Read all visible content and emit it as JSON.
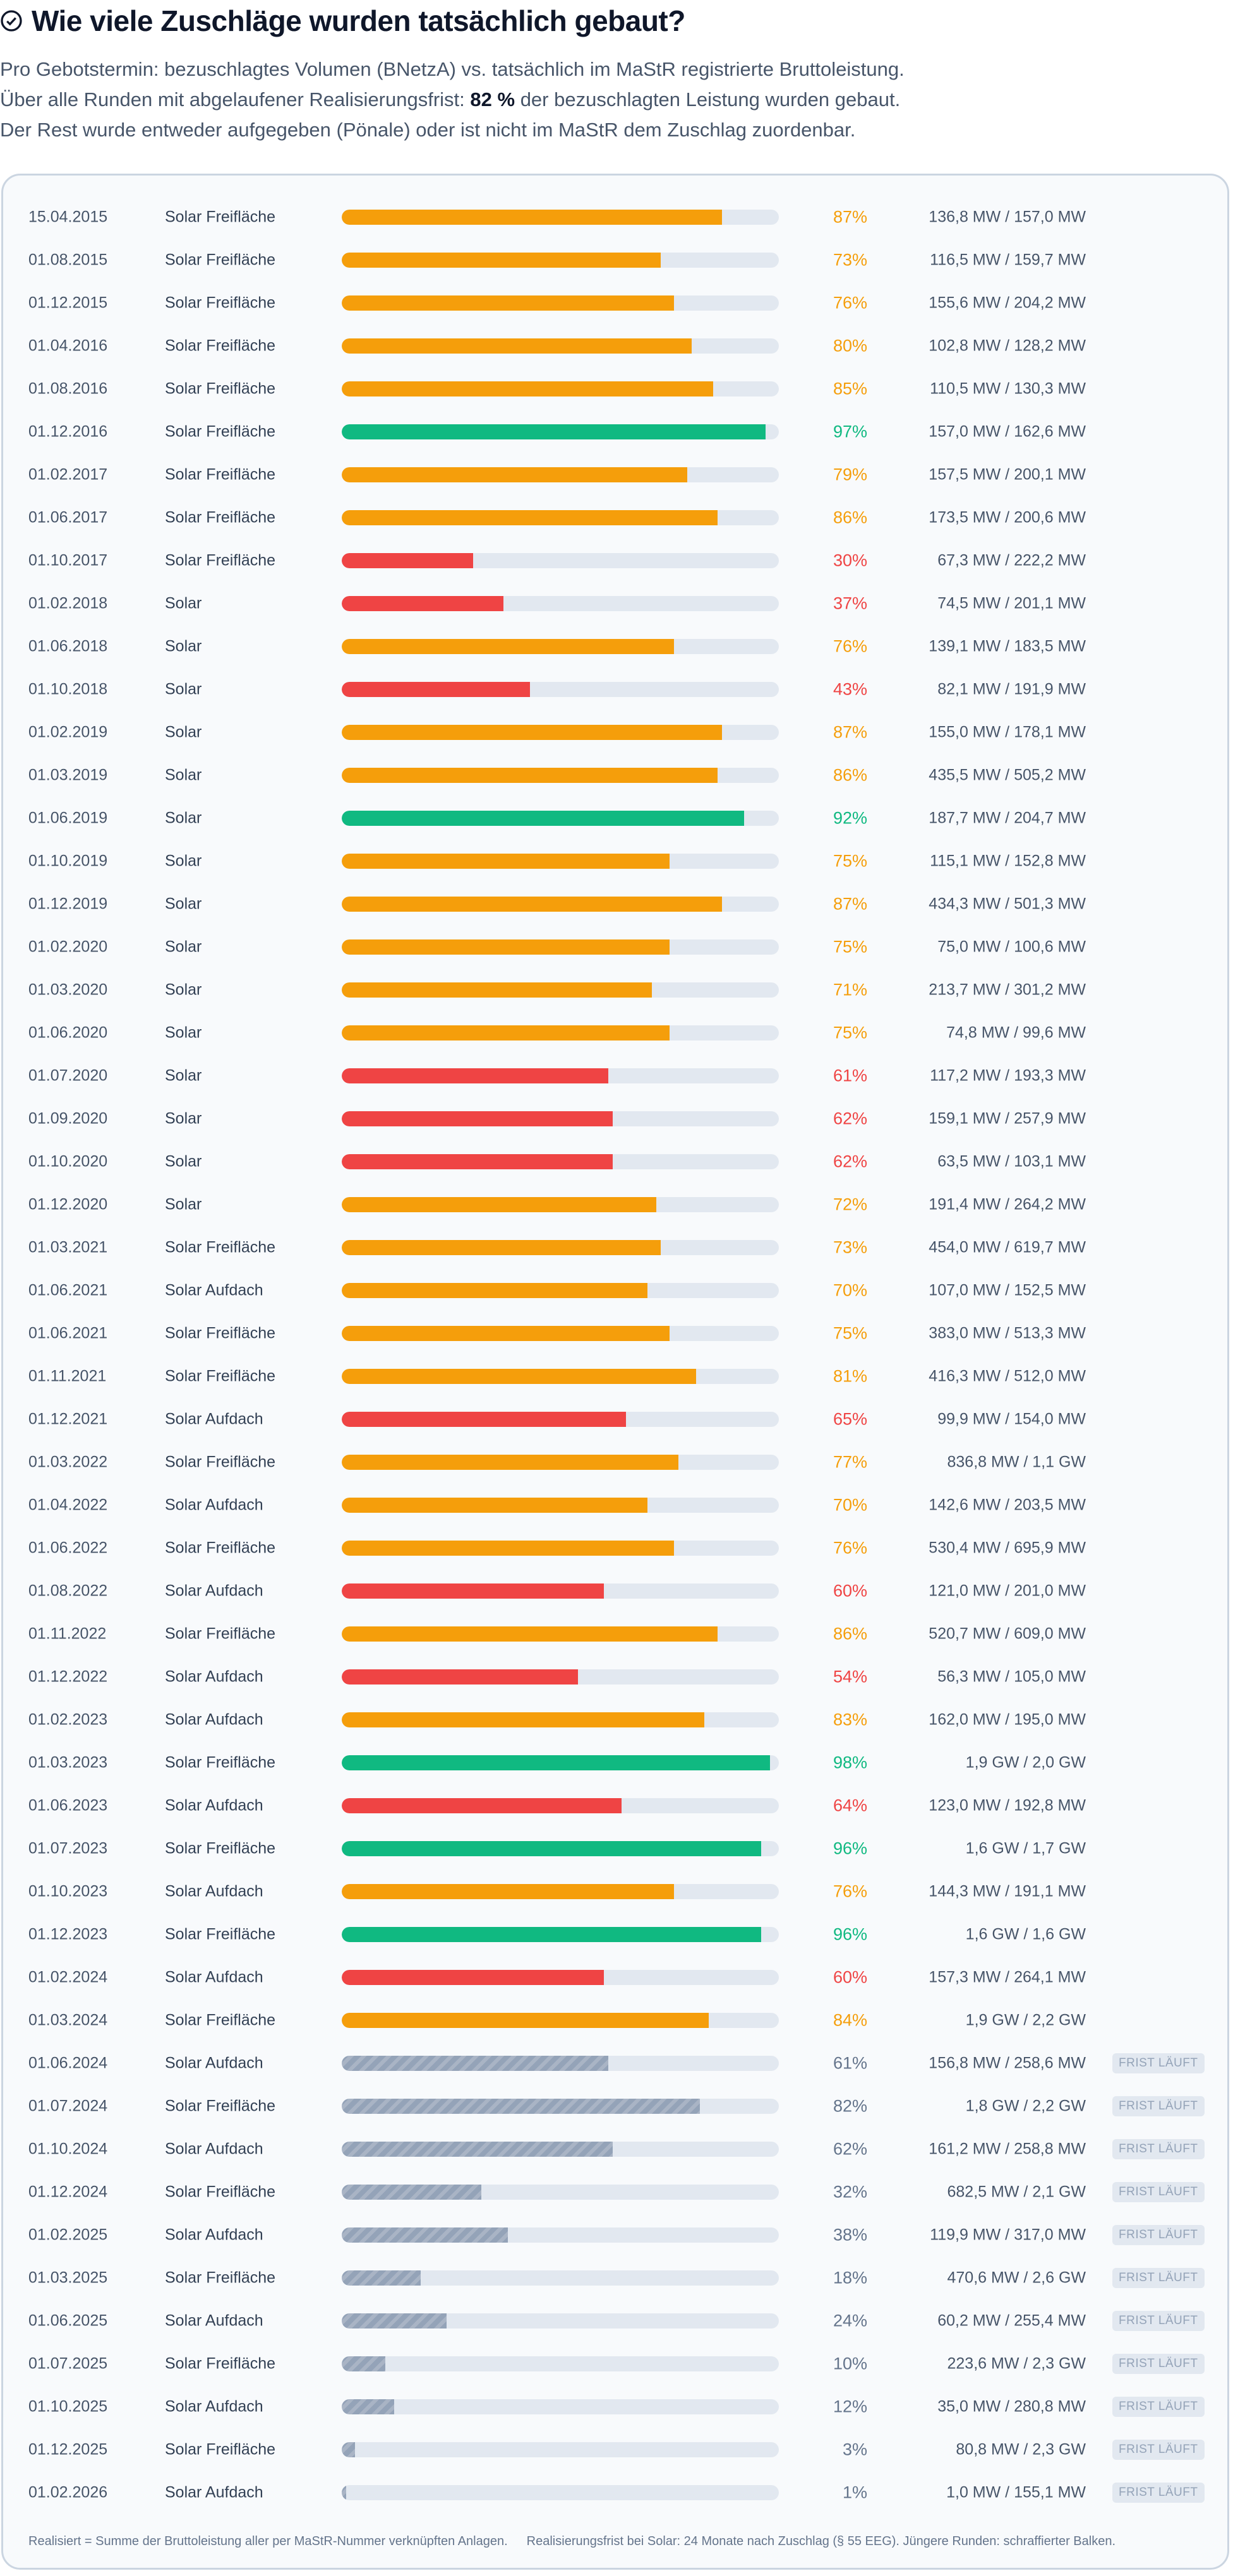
{
  "header": {
    "title": "Wie viele Zuschläge wurden tatsächlich gebaut?",
    "line1": "Pro Gebotstermin: bezuschlagtes Volumen (BNetzA) vs. tatsächlich im MaStR registrierte Bruttoleistung.",
    "line2_pre": "Über alle Runden mit abgelaufener Realisierungsfrist: ",
    "line2_bold": "82 %",
    "line2_post": " der bezuschlagten Leistung wurden gebaut.",
    "line3": "Der Rest wurde entweder aufgegeben (Pönale) oder ist nicht im MaStR dem Zuschlag zuordenbar."
  },
  "colors": {
    "orange": "#f59e0b",
    "green": "#10b981",
    "red": "#ef4444",
    "pending": "#94a3b8",
    "track": "#e2e8f0"
  },
  "chart_data": {
    "type": "bar",
    "orientation": "horizontal",
    "xlim": [
      0,
      100
    ],
    "unit": "%",
    "badge_label": "FRIST LÄUFT",
    "rows": [
      {
        "date": "15.04.2015",
        "type": "Solar Freifläche",
        "pct": 87,
        "value": "136,8 MW / 157,0 MW",
        "status": "orange"
      },
      {
        "date": "01.08.2015",
        "type": "Solar Freifläche",
        "pct": 73,
        "value": "116,5 MW / 159,7 MW",
        "status": "orange"
      },
      {
        "date": "01.12.2015",
        "type": "Solar Freifläche",
        "pct": 76,
        "value": "155,6 MW / 204,2 MW",
        "status": "orange"
      },
      {
        "date": "01.04.2016",
        "type": "Solar Freifläche",
        "pct": 80,
        "value": "102,8 MW / 128,2 MW",
        "status": "orange"
      },
      {
        "date": "01.08.2016",
        "type": "Solar Freifläche",
        "pct": 85,
        "value": "110,5 MW / 130,3 MW",
        "status": "orange"
      },
      {
        "date": "01.12.2016",
        "type": "Solar Freifläche",
        "pct": 97,
        "value": "157,0 MW / 162,6 MW",
        "status": "green"
      },
      {
        "date": "01.02.2017",
        "type": "Solar Freifläche",
        "pct": 79,
        "value": "157,5 MW / 200,1 MW",
        "status": "orange"
      },
      {
        "date": "01.06.2017",
        "type": "Solar Freifläche",
        "pct": 86,
        "value": "173,5 MW / 200,6 MW",
        "status": "orange"
      },
      {
        "date": "01.10.2017",
        "type": "Solar Freifläche",
        "pct": 30,
        "value": "67,3 MW / 222,2 MW",
        "status": "red"
      },
      {
        "date": "01.02.2018",
        "type": "Solar",
        "pct": 37,
        "value": "74,5 MW / 201,1 MW",
        "status": "red"
      },
      {
        "date": "01.06.2018",
        "type": "Solar",
        "pct": 76,
        "value": "139,1 MW / 183,5 MW",
        "status": "orange"
      },
      {
        "date": "01.10.2018",
        "type": "Solar",
        "pct": 43,
        "value": "82,1 MW / 191,9 MW",
        "status": "red"
      },
      {
        "date": "01.02.2019",
        "type": "Solar",
        "pct": 87,
        "value": "155,0 MW / 178,1 MW",
        "status": "orange"
      },
      {
        "date": "01.03.2019",
        "type": "Solar",
        "pct": 86,
        "value": "435,5 MW / 505,2 MW",
        "status": "orange"
      },
      {
        "date": "01.06.2019",
        "type": "Solar",
        "pct": 92,
        "value": "187,7 MW / 204,7 MW",
        "status": "green"
      },
      {
        "date": "01.10.2019",
        "type": "Solar",
        "pct": 75,
        "value": "115,1 MW / 152,8 MW",
        "status": "orange"
      },
      {
        "date": "01.12.2019",
        "type": "Solar",
        "pct": 87,
        "value": "434,3 MW / 501,3 MW",
        "status": "orange"
      },
      {
        "date": "01.02.2020",
        "type": "Solar",
        "pct": 75,
        "value": "75,0 MW / 100,6 MW",
        "status": "orange"
      },
      {
        "date": "01.03.2020",
        "type": "Solar",
        "pct": 71,
        "value": "213,7 MW / 301,2 MW",
        "status": "orange"
      },
      {
        "date": "01.06.2020",
        "type": "Solar",
        "pct": 75,
        "value": "74,8 MW / 99,6 MW",
        "status": "orange"
      },
      {
        "date": "01.07.2020",
        "type": "Solar",
        "pct": 61,
        "value": "117,2 MW / 193,3 MW",
        "status": "red"
      },
      {
        "date": "01.09.2020",
        "type": "Solar",
        "pct": 62,
        "value": "159,1 MW / 257,9 MW",
        "status": "red"
      },
      {
        "date": "01.10.2020",
        "type": "Solar",
        "pct": 62,
        "value": "63,5 MW / 103,1 MW",
        "status": "red"
      },
      {
        "date": "01.12.2020",
        "type": "Solar",
        "pct": 72,
        "value": "191,4 MW / 264,2 MW",
        "status": "orange"
      },
      {
        "date": "01.03.2021",
        "type": "Solar Freifläche",
        "pct": 73,
        "value": "454,0 MW / 619,7 MW",
        "status": "orange"
      },
      {
        "date": "01.06.2021",
        "type": "Solar Aufdach",
        "pct": 70,
        "value": "107,0 MW / 152,5 MW",
        "status": "orange"
      },
      {
        "date": "01.06.2021",
        "type": "Solar Freifläche",
        "pct": 75,
        "value": "383,0 MW / 513,3 MW",
        "status": "orange"
      },
      {
        "date": "01.11.2021",
        "type": "Solar Freifläche",
        "pct": 81,
        "value": "416,3 MW / 512,0 MW",
        "status": "orange"
      },
      {
        "date": "01.12.2021",
        "type": "Solar Aufdach",
        "pct": 65,
        "value": "99,9 MW / 154,0 MW",
        "status": "red"
      },
      {
        "date": "01.03.2022",
        "type": "Solar Freifläche",
        "pct": 77,
        "value": "836,8 MW / 1,1 GW",
        "status": "orange"
      },
      {
        "date": "01.04.2022",
        "type": "Solar Aufdach",
        "pct": 70,
        "value": "142,6 MW / 203,5 MW",
        "status": "orange"
      },
      {
        "date": "01.06.2022",
        "type": "Solar Freifläche",
        "pct": 76,
        "value": "530,4 MW / 695,9 MW",
        "status": "orange"
      },
      {
        "date": "01.08.2022",
        "type": "Solar Aufdach",
        "pct": 60,
        "value": "121,0 MW / 201,0 MW",
        "status": "red"
      },
      {
        "date": "01.11.2022",
        "type": "Solar Freifläche",
        "pct": 86,
        "value": "520,7 MW / 609,0 MW",
        "status": "orange"
      },
      {
        "date": "01.12.2022",
        "type": "Solar Aufdach",
        "pct": 54,
        "value": "56,3 MW / 105,0 MW",
        "status": "red"
      },
      {
        "date": "01.02.2023",
        "type": "Solar Aufdach",
        "pct": 83,
        "value": "162,0 MW / 195,0 MW",
        "status": "orange"
      },
      {
        "date": "01.03.2023",
        "type": "Solar Freifläche",
        "pct": 98,
        "value": "1,9 GW / 2,0 GW",
        "status": "green"
      },
      {
        "date": "01.06.2023",
        "type": "Solar Aufdach",
        "pct": 64,
        "value": "123,0 MW / 192,8 MW",
        "status": "red"
      },
      {
        "date": "01.07.2023",
        "type": "Solar Freifläche",
        "pct": 96,
        "value": "1,6 GW / 1,7 GW",
        "status": "green"
      },
      {
        "date": "01.10.2023",
        "type": "Solar Aufdach",
        "pct": 76,
        "value": "144,3 MW / 191,1 MW",
        "status": "orange"
      },
      {
        "date": "01.12.2023",
        "type": "Solar Freifläche",
        "pct": 96,
        "value": "1,6 GW / 1,6 GW",
        "status": "green"
      },
      {
        "date": "01.02.2024",
        "type": "Solar Aufdach",
        "pct": 60,
        "value": "157,3 MW / 264,1 MW",
        "status": "red"
      },
      {
        "date": "01.03.2024",
        "type": "Solar Freifläche",
        "pct": 84,
        "value": "1,9 GW / 2,2 GW",
        "status": "orange"
      },
      {
        "date": "01.06.2024",
        "type": "Solar Aufdach",
        "pct": 61,
        "value": "156,8 MW / 258,6 MW",
        "status": "pending"
      },
      {
        "date": "01.07.2024",
        "type": "Solar Freifläche",
        "pct": 82,
        "value": "1,8 GW / 2,2 GW",
        "status": "pending"
      },
      {
        "date": "01.10.2024",
        "type": "Solar Aufdach",
        "pct": 62,
        "value": "161,2 MW / 258,8 MW",
        "status": "pending"
      },
      {
        "date": "01.12.2024",
        "type": "Solar Freifläche",
        "pct": 32,
        "value": "682,5 MW / 2,1 GW",
        "status": "pending"
      },
      {
        "date": "01.02.2025",
        "type": "Solar Aufdach",
        "pct": 38,
        "value": "119,9 MW / 317,0 MW",
        "status": "pending"
      },
      {
        "date": "01.03.2025",
        "type": "Solar Freifläche",
        "pct": 18,
        "value": "470,6 MW / 2,6 GW",
        "status": "pending"
      },
      {
        "date": "01.06.2025",
        "type": "Solar Aufdach",
        "pct": 24,
        "value": "60,2 MW / 255,4 MW",
        "status": "pending"
      },
      {
        "date": "01.07.2025",
        "type": "Solar Freifläche",
        "pct": 10,
        "value": "223,6 MW / 2,3 GW",
        "status": "pending"
      },
      {
        "date": "01.10.2025",
        "type": "Solar Aufdach",
        "pct": 12,
        "value": "35,0 MW / 280,8 MW",
        "status": "pending"
      },
      {
        "date": "01.12.2025",
        "type": "Solar Freifläche",
        "pct": 3,
        "value": "80,8 MW / 2,3 GW",
        "status": "pending"
      },
      {
        "date": "01.02.2026",
        "type": "Solar Aufdach",
        "pct": 1,
        "value": "1,0 MW / 155,1 MW",
        "status": "pending"
      }
    ]
  },
  "footer": {
    "note1": "Realisiert = Summe der Bruttoleistung aller per MaStR-Nummer verknüpften Anlagen.",
    "note2": "Realisierungsfrist bei Solar: 24 Monate nach Zuschlag (§ 55 EEG). Jüngere Runden: schraffierter Balken."
  }
}
